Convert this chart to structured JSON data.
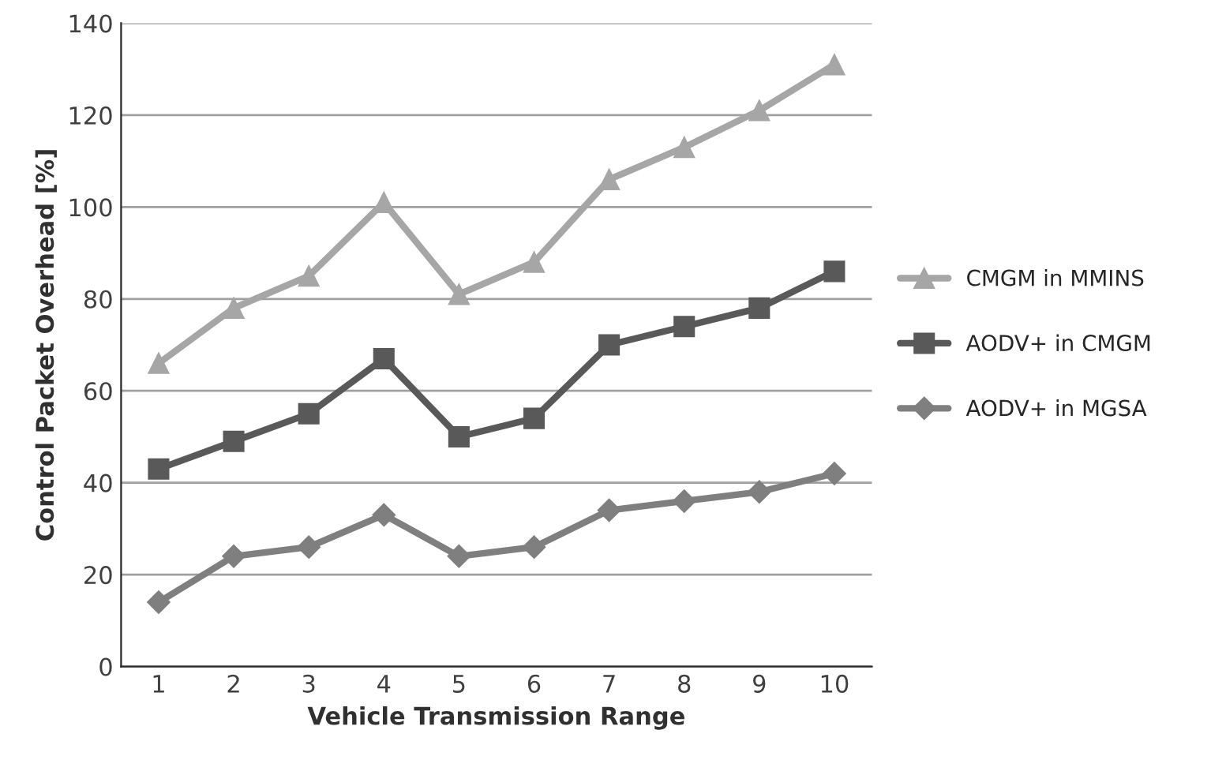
{
  "chart_data": {
    "type": "line",
    "xlabel": "Vehicle Transmission Range",
    "ylabel": "Control Packet Overhead [%]",
    "categories": [
      "1",
      "2",
      "3",
      "4",
      "5",
      "6",
      "7",
      "8",
      "9",
      "10"
    ],
    "series": [
      {
        "name": "CMGM in MMINS",
        "color": "#a6a6a6",
        "marker": "triangle",
        "values": [
          66,
          78,
          85,
          101,
          81,
          88,
          106,
          113,
          121,
          131
        ]
      },
      {
        "name": "AODV+ in CMGM",
        "color": "#595959",
        "marker": "square",
        "values": [
          43,
          49,
          55,
          67,
          50,
          54,
          70,
          74,
          78,
          86
        ]
      },
      {
        "name": "AODV+ in MGSA",
        "color": "#7f7f7f",
        "marker": "diamond",
        "values": [
          14,
          24,
          26,
          33,
          24,
          26,
          34,
          36,
          38,
          42
        ]
      }
    ],
    "ylim": [
      0,
      140
    ],
    "yticks": [
      0,
      20,
      40,
      60,
      80,
      100,
      120,
      140
    ],
    "grid": "y",
    "legend": "right",
    "line_style": "solid"
  }
}
